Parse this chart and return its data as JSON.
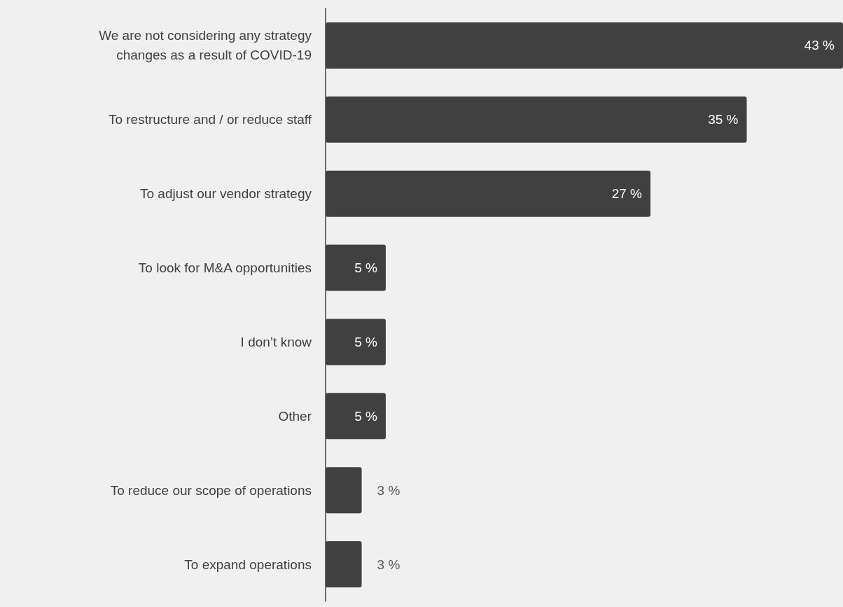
{
  "chart_data": {
    "type": "bar",
    "orientation": "horizontal",
    "categories": [
      "We are not considering any strategy\nchanges as a result of COVID-19",
      "To restructure and / or reduce staff",
      "To adjust our vendor strategy",
      "To look for M&A opportunities",
      "I don’t know",
      "Other",
      "To reduce our scope of operations",
      "To expand operations"
    ],
    "values": [
      43,
      35,
      27,
      5,
      5,
      5,
      3,
      3
    ],
    "value_labels": [
      "43 %",
      "35 %",
      "27 %",
      "5 %",
      "5 %",
      "5 %",
      "3 %",
      "3 %"
    ],
    "color": "#404040",
    "grid": false,
    "tick_labels": "y"
  }
}
